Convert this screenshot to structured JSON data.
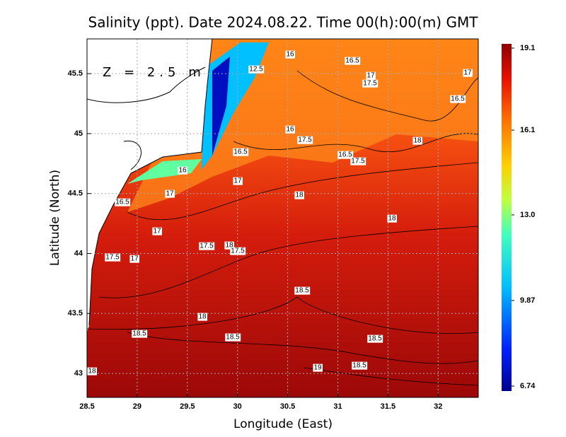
{
  "chart_data": {
    "type": "contour-map",
    "title": "Salinity (ppt). Date 2024.08.22. Time 00(h):00(m) GMT",
    "annotation": "Z = 2.5 m",
    "xlabel": "Longitude (East)",
    "ylabel": "Latitude (North)",
    "xlim": [
      28.5,
      32.4
    ],
    "ylim": [
      42.8,
      45.79
    ],
    "xticks": [
      28.5,
      29,
      29.5,
      30,
      30.5,
      31,
      31.5,
      32
    ],
    "yticks": [
      43,
      43.5,
      44,
      44.5,
      45,
      45.5
    ],
    "grid": true,
    "colorbar": {
      "lim": [
        6.74,
        19.1
      ],
      "ticks": [
        19.1,
        16.1,
        {
          "value": 13,
          "label": "13.0"
        },
        9.87,
        6.74
      ]
    },
    "contour_labels": [
      16,
      16.5,
      12.5,
      17,
      17.5,
      17,
      16.5,
      16,
      17.5,
      18,
      16.5,
      16.5,
      17.5,
      16,
      17,
      17,
      18,
      16.5,
      18,
      17,
      17.5,
      18,
      17.5,
      17.5,
      17,
      18.5,
      18,
      18.5,
      18.5,
      18.5,
      19,
      18.5,
      18
    ]
  }
}
